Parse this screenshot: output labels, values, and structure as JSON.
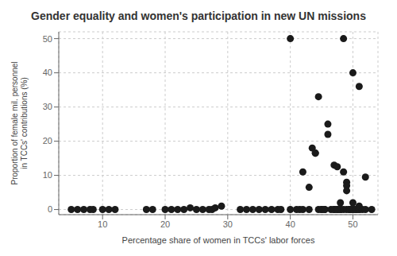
{
  "chart_data": {
    "type": "scatter",
    "title": "Gender equality and women's participation in new UN missions",
    "xlabel": "Percentage share of women in TCCs' labor forces",
    "ylabel": "Proportion of female mil. personnel in TCCs' contributions (%)",
    "color": "#1a1a1a",
    "grid": true,
    "xlim": [
      3,
      54
    ],
    "ylim": [
      -1.5,
      52
    ],
    "xticks": [
      10,
      20,
      30,
      40,
      50
    ],
    "yticks": [
      0,
      10,
      20,
      30,
      40,
      50
    ],
    "x": [
      5,
      6,
      7,
      8,
      8.5,
      10,
      11,
      12,
      17,
      18,
      20,
      21,
      22,
      23,
      24,
      25,
      26,
      27,
      27.5,
      28,
      29,
      32,
      33,
      34,
      35,
      36,
      37,
      38,
      38.5,
      40,
      40,
      41,
      41.5,
      42,
      42,
      43,
      43,
      43.5,
      44,
      44,
      44.5,
      44.5,
      45,
      45,
      45.5,
      45.5,
      46,
      46,
      46.5,
      47,
      47,
      47,
      47.5,
      47.5,
      47.5,
      48,
      48,
      48,
      48,
      48.5,
      48.5,
      48.5,
      49,
      49,
      49,
      49,
      49.5,
      49.5,
      49.5,
      50,
      50,
      50,
      50,
      50.5,
      50.5,
      50.5,
      51,
      51,
      51,
      51,
      51.5,
      52,
      52,
      53
    ],
    "y": [
      0,
      0,
      0,
      0,
      0,
      0,
      0,
      0,
      0,
      0,
      0,
      0,
      0,
      0,
      0.5,
      0,
      0,
      0,
      0,
      0.5,
      1,
      0,
      0,
      0,
      0,
      0,
      0,
      0,
      0,
      50,
      0,
      0,
      0,
      0,
      11,
      0,
      6.5,
      18,
      16.5,
      16.5,
      0,
      33,
      0,
      0,
      0,
      0,
      25,
      22,
      0,
      0,
      0,
      13,
      0,
      0,
      12.5,
      0,
      0,
      2,
      0,
      50,
      11,
      0,
      0,
      8,
      7,
      5.5,
      0,
      0,
      0,
      40,
      0,
      0,
      2,
      0,
      0,
      0,
      36,
      0,
      0,
      1,
      0,
      9.5,
      0,
      0
    ]
  }
}
